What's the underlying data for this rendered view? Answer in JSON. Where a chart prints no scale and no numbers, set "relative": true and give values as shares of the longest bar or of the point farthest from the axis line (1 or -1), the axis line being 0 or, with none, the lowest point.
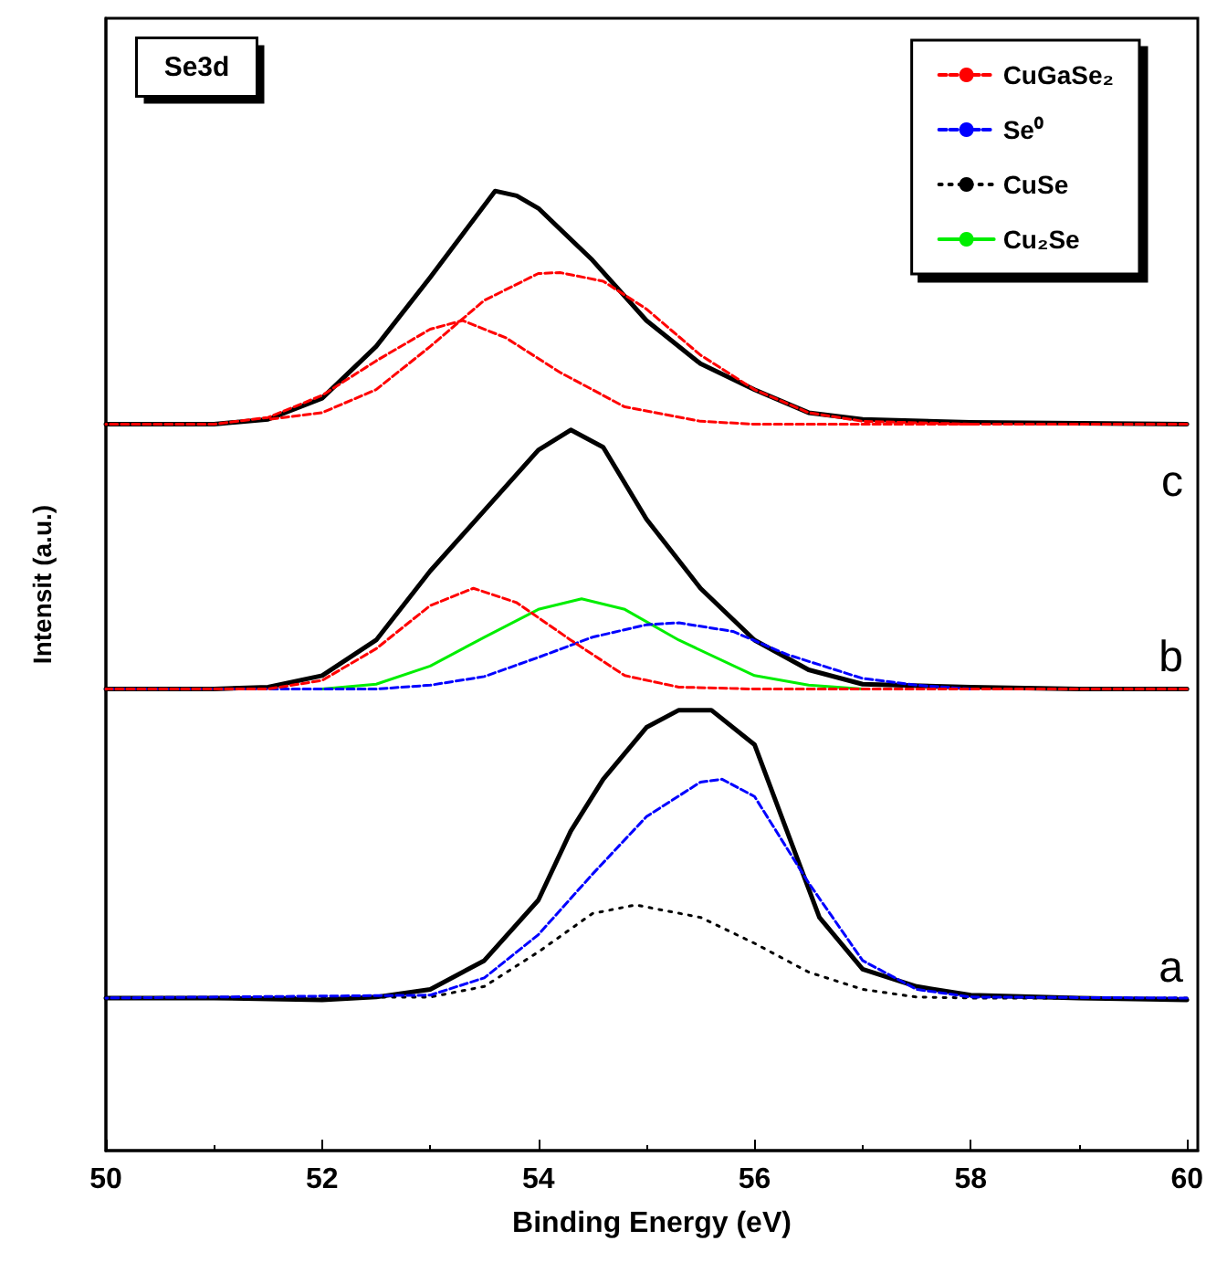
{
  "chart_data": {
    "type": "line",
    "relative": true,
    "xlabel": "Binding Energy (eV)",
    "ylabel": "Intensit (a.u.)",
    "xlim": [
      50,
      60.1
    ],
    "xticks": [
      50,
      52,
      54,
      56,
      58,
      60
    ],
    "legend": "top right",
    "grid": false,
    "marker": "none",
    "annotations": [
      "Se3d",
      "c",
      "b",
      "a"
    ],
    "series": [
      {
        "name": "CuGaSe₂",
        "color": "#ff0000",
        "line_style": "dashed",
        "x": [
          50,
          51,
          51.5,
          52,
          52.5,
          53,
          53.3,
          53.7,
          54.2,
          54.8,
          55.5,
          56,
          60
        ],
        "values": [
          0.757,
          0.757,
          0.764,
          0.787,
          0.823,
          0.856,
          0.865,
          0.847,
          0.811,
          0.775,
          0.76,
          0.757,
          0.757
        ]
      },
      {
        "name": "Se⁰",
        "color": "#0000ff",
        "line_style": "dashed",
        "x": [
          50,
          52.5,
          53,
          53.5,
          54,
          54.5,
          55,
          55.3,
          55.8,
          56.3,
          57,
          57.5,
          58
        ],
        "values": [
          0.481,
          0.481,
          0.485,
          0.494,
          0.514,
          0.535,
          0.548,
          0.55,
          0.541,
          0.517,
          0.492,
          0.485,
          0.481
        ]
      },
      {
        "name": "CuSe",
        "color": "#000000",
        "line_style": "dotted",
        "x": [
          50,
          53,
          53.5,
          54,
          54.5,
          54.9,
          55.5,
          56,
          56.5,
          57,
          57.5,
          58,
          60
        ],
        "values": [
          0.159,
          0.16,
          0.171,
          0.207,
          0.247,
          0.256,
          0.243,
          0.216,
          0.186,
          0.168,
          0.16,
          0.159,
          0.159
        ]
      },
      {
        "name": "Cu₂Se",
        "color": "#00ee00",
        "line_style": "solid",
        "x": [
          52,
          52.5,
          53,
          53.5,
          54,
          54.4,
          54.8,
          55.3,
          56,
          56.5,
          57
        ],
        "values": [
          0.481,
          0.486,
          0.505,
          0.535,
          0.564,
          0.575,
          0.564,
          0.532,
          0.495,
          0.485,
          0.481
        ]
      },
      {
        "color": "#ff0000",
        "line_style": "dashed",
        "x": [
          51.5,
          52,
          52.5,
          53,
          53.5,
          54,
          54.2,
          54.6,
          55,
          55.5,
          56,
          56.5,
          57,
          58
        ],
        "values": [
          0.762,
          0.769,
          0.793,
          0.838,
          0.886,
          0.914,
          0.915,
          0.906,
          0.877,
          0.829,
          0.793,
          0.769,
          0.76,
          0.757
        ]
      },
      {
        "color": "#ff0000",
        "line_style": "dashed",
        "x": [
          50,
          51.5,
          52,
          52.5,
          53,
          53.4,
          53.8,
          54.3,
          54.8,
          55.3,
          56,
          60
        ],
        "values": [
          0.481,
          0.481,
          0.49,
          0.523,
          0.568,
          0.586,
          0.571,
          0.532,
          0.495,
          0.483,
          0.481,
          0.481
        ]
      },
      {
        "color": "#0000ff",
        "line_style": "dashed",
        "x": [
          50,
          53,
          53.5,
          54,
          54.5,
          55,
          55.5,
          55.7,
          56,
          56.5,
          57,
          57.5,
          58,
          60
        ],
        "values": [
          0.159,
          0.162,
          0.18,
          0.225,
          0.288,
          0.348,
          0.384,
          0.387,
          0.369,
          0.279,
          0.198,
          0.168,
          0.16,
          0.159
        ]
      },
      {
        "color": "#000000",
        "line_style": "solid",
        "x": [
          50,
          51,
          52,
          52.5,
          53,
          53.5,
          54,
          54.3,
          54.6,
          55,
          55.3,
          55.6,
          56,
          56.3,
          56.6,
          57,
          57.5,
          58,
          59,
          60
        ],
        "values": [
          0.159,
          0.159,
          0.157,
          0.16,
          0.168,
          0.198,
          0.261,
          0.333,
          0.387,
          0.441,
          0.459,
          0.459,
          0.423,
          0.333,
          0.243,
          0.189,
          0.171,
          0.162,
          0.159,
          0.157
        ]
      },
      {
        "color": "#000000",
        "line_style": "solid",
        "x": [
          50,
          51,
          51.5,
          52,
          52.5,
          53,
          53.5,
          54,
          54.3,
          54.6,
          55,
          55.5,
          56,
          56.5,
          57,
          58,
          59,
          60
        ],
        "values": [
          0.481,
          0.481,
          0.483,
          0.495,
          0.532,
          0.604,
          0.667,
          0.73,
          0.751,
          0.733,
          0.658,
          0.586,
          0.532,
          0.501,
          0.486,
          0.483,
          0.481,
          0.481
        ]
      },
      {
        "color": "#000000",
        "line_style": "solid",
        "x": [
          50,
          51,
          51.5,
          52,
          52.5,
          53,
          53.3,
          53.6,
          53.8,
          54,
          54.5,
          55,
          55.5,
          56,
          56.5,
          57,
          58,
          60
        ],
        "values": [
          0.757,
          0.757,
          0.762,
          0.784,
          0.838,
          0.91,
          0.955,
          1.0,
          0.995,
          0.982,
          0.928,
          0.865,
          0.82,
          0.793,
          0.769,
          0.762,
          0.759,
          0.757
        ]
      }
    ]
  }
}
